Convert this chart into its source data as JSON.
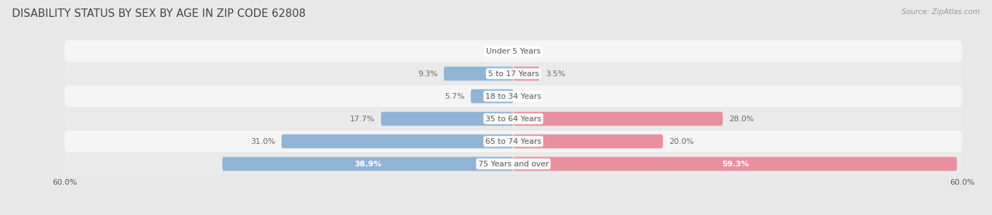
{
  "title": "DISABILITY STATUS BY SEX BY AGE IN ZIP CODE 62808",
  "source": "Source: ZipAtlas.com",
  "categories": [
    "Under 5 Years",
    "5 to 17 Years",
    "18 to 34 Years",
    "35 to 64 Years",
    "65 to 74 Years",
    "75 Years and over"
  ],
  "male_values": [
    0.0,
    9.3,
    5.7,
    17.7,
    31.0,
    38.9
  ],
  "female_values": [
    0.0,
    3.5,
    0.0,
    28.0,
    20.0,
    59.3
  ],
  "male_color": "#92b4d4",
  "female_color": "#e8909f",
  "bar_height": 0.62,
  "xlim": 60.0,
  "outer_bg": "#e0e0e0",
  "row_bg_light": "#f5f5f5",
  "row_bg_dark": "#eaeaea",
  "title_fontsize": 11,
  "label_fontsize": 8,
  "cat_fontsize": 8,
  "source_fontsize": 7.5,
  "inside_label_threshold": 35.0
}
